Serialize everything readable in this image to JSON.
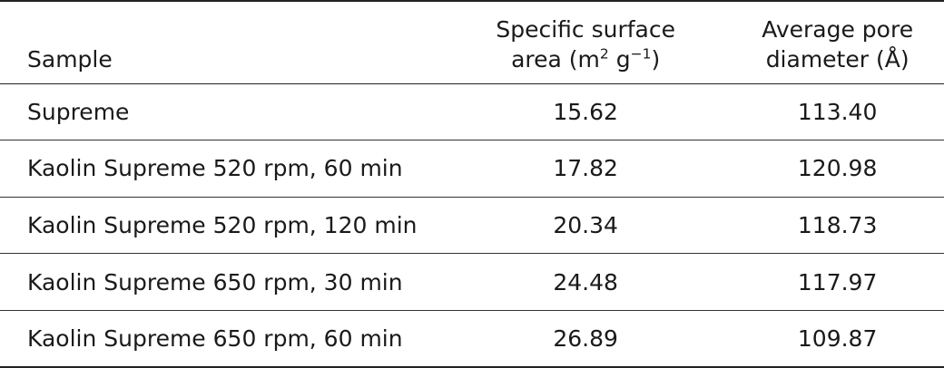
{
  "table": {
    "headers": {
      "sample": "Sample",
      "area_line1": "Specific surface",
      "area_line2_prefix": "area (m",
      "area_sup1": "2",
      "area_mid": " g",
      "area_sup2": "−1",
      "area_suffix": ")",
      "pore_line1": "Average pore",
      "pore_line2": "diameter (Å)"
    },
    "rows": [
      {
        "sample": "Supreme",
        "area": "15.62",
        "pore": "113.40"
      },
      {
        "sample": "Kaolin Supreme 520 rpm, 60 min",
        "area": "17.82",
        "pore": "120.98"
      },
      {
        "sample": "Kaolin Supreme 520 rpm, 120 min",
        "area": "20.34",
        "pore": "118.73"
      },
      {
        "sample": "Kaolin Supreme 650 rpm, 30 min",
        "area": "24.48",
        "pore": "117.97"
      },
      {
        "sample": "Kaolin Supreme 650 rpm, 60 min",
        "area": "26.89",
        "pore": "109.87"
      }
    ]
  }
}
